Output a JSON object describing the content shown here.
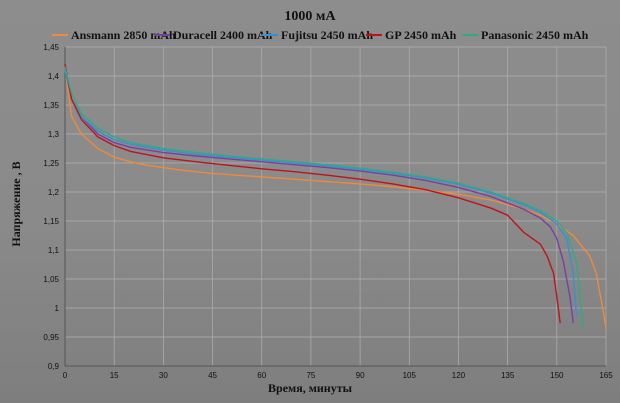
{
  "chart_data": {
    "type": "line",
    "title": "1000 мА",
    "xlabel": "Время, минуты",
    "ylabel": "Напряжение , В",
    "xlim": [
      0,
      165
    ],
    "ylim": [
      0.9,
      1.45
    ],
    "xticks": [
      "0",
      "15",
      "30",
      "45",
      "60",
      "75",
      "90",
      "105",
      "120",
      "135",
      "150",
      "165"
    ],
    "yticks": [
      "0,9",
      "0,95",
      "1",
      "1,05",
      "1,1",
      "1,15",
      "1,2",
      "1,25",
      "1,3",
      "1,35",
      "1,4",
      "1,45"
    ],
    "grid": true,
    "legend_position": "top",
    "series": [
      {
        "name": "Ansmann 2850 mAh",
        "color": "#f0893a",
        "x": [
          0,
          2,
          5,
          10,
          15,
          20,
          25,
          30,
          35,
          40,
          45,
          50,
          55,
          60,
          70,
          80,
          90,
          100,
          110,
          120,
          130,
          140,
          145,
          150,
          155,
          160,
          162,
          164,
          165
        ],
        "y": [
          1.415,
          1.33,
          1.3,
          1.275,
          1.26,
          1.252,
          1.246,
          1.242,
          1.238,
          1.235,
          1.232,
          1.23,
          1.228,
          1.226,
          1.222,
          1.218,
          1.214,
          1.209,
          1.203,
          1.196,
          1.186,
          1.17,
          1.16,
          1.145,
          1.125,
          1.09,
          1.06,
          1.0,
          0.965
        ]
      },
      {
        "name": "Duracell 2400 mAh",
        "color": "#7b3fa0",
        "x": [
          0,
          2,
          5,
          10,
          15,
          20,
          30,
          40,
          50,
          60,
          70,
          80,
          90,
          100,
          110,
          120,
          130,
          140,
          145,
          148,
          150,
          152,
          154,
          155
        ],
        "y": [
          1.415,
          1.36,
          1.33,
          1.3,
          1.285,
          1.277,
          1.268,
          1.262,
          1.257,
          1.252,
          1.247,
          1.242,
          1.236,
          1.229,
          1.22,
          1.208,
          1.192,
          1.17,
          1.155,
          1.14,
          1.12,
          1.08,
          1.02,
          0.975
        ]
      },
      {
        "name": "Fujitsu 2450 mAh",
        "color": "#3a8fd0",
        "x": [
          0,
          2,
          5,
          10,
          15,
          20,
          30,
          40,
          50,
          60,
          70,
          80,
          90,
          100,
          110,
          120,
          130,
          140,
          145,
          150,
          153,
          155,
          156
        ],
        "y": [
          1.41,
          1.36,
          1.33,
          1.305,
          1.29,
          1.282,
          1.272,
          1.265,
          1.26,
          1.255,
          1.25,
          1.245,
          1.239,
          1.232,
          1.224,
          1.213,
          1.198,
          1.178,
          1.165,
          1.145,
          1.12,
          1.06,
          0.985
        ]
      },
      {
        "name": "GP 2450 mAh",
        "color": "#c0121c",
        "x": [
          0,
          2,
          5,
          10,
          15,
          20,
          30,
          40,
          50,
          60,
          70,
          80,
          90,
          100,
          110,
          120,
          130,
          135,
          140,
          145,
          147,
          149,
          150,
          151
        ],
        "y": [
          1.42,
          1.36,
          1.325,
          1.295,
          1.28,
          1.27,
          1.259,
          1.252,
          1.246,
          1.24,
          1.235,
          1.229,
          1.222,
          1.214,
          1.204,
          1.19,
          1.172,
          1.16,
          1.13,
          1.11,
          1.09,
          1.06,
          1.02,
          0.975
        ]
      },
      {
        "name": "Panasonic 2450 mAh",
        "color": "#2faa86",
        "x": [
          0,
          2,
          5,
          10,
          15,
          20,
          30,
          40,
          50,
          60,
          70,
          80,
          90,
          100,
          110,
          120,
          130,
          140,
          145,
          150,
          153,
          156,
          158
        ],
        "y": [
          1.415,
          1.37,
          1.335,
          1.31,
          1.295,
          1.285,
          1.275,
          1.268,
          1.262,
          1.257,
          1.252,
          1.247,
          1.241,
          1.234,
          1.226,
          1.215,
          1.2,
          1.18,
          1.168,
          1.15,
          1.13,
          1.08,
          0.968
        ]
      }
    ]
  }
}
